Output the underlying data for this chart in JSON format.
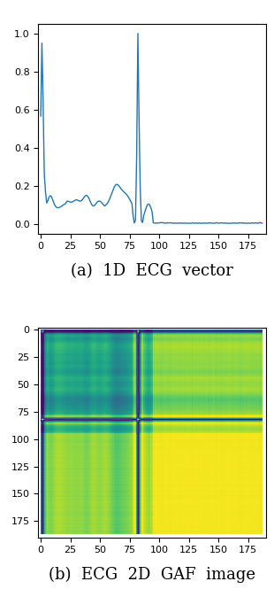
{
  "fig_width": 3.1,
  "fig_height": 6.74,
  "dpi": 100,
  "ecg_color": "#1f77b4",
  "ecg_linewidth": 1.0,
  "ecg_xlim": [
    -2,
    190
  ],
  "ecg_ylim": [
    -0.05,
    1.05
  ],
  "ecg_xticks": [
    0,
    25,
    50,
    75,
    100,
    125,
    150,
    175
  ],
  "ecg_yticks": [
    0.0,
    0.2,
    0.4,
    0.6,
    0.8,
    1.0
  ],
  "label_a": "(a)  1D  ECG  vector",
  "label_b": "(b)  ECG  2D  GAF  image",
  "label_fontsize": 13,
  "gaf_xlim": [
    -2,
    190
  ],
  "gaf_ylim": [
    190,
    -2
  ],
  "gaf_xticks": [
    0,
    25,
    50,
    75,
    100,
    125,
    150,
    175
  ],
  "gaf_yticks": [
    0,
    25,
    50,
    75,
    100,
    125,
    150,
    175
  ],
  "colormap": "viridis",
  "n_points": 188
}
